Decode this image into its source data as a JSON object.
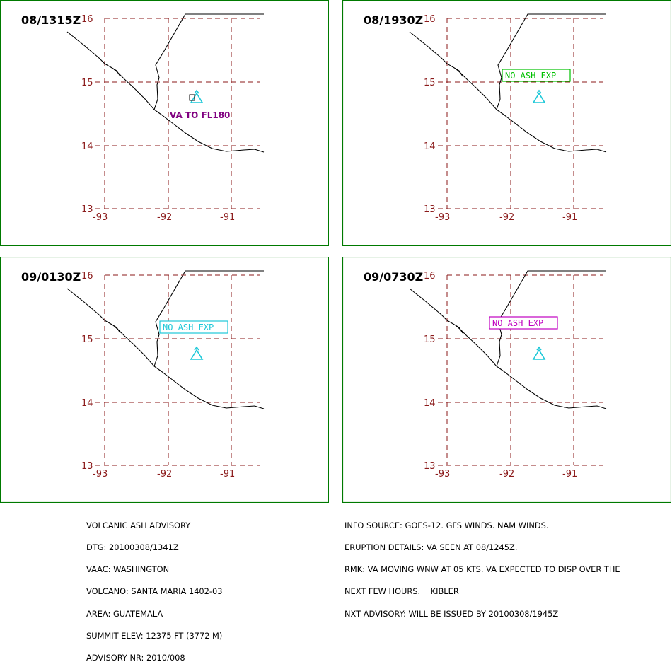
{
  "colors": {
    "frame": "#007a00",
    "grid": "#8b1a1a",
    "volcano": "#1ec8d8",
    "va_text": "#800080",
    "box_green": "#00c000",
    "box_cyan": "#1ec8d8",
    "box_magenta": "#c000c0"
  },
  "axes": {
    "lat_ticks": [
      "16",
      "15",
      "14",
      "13"
    ],
    "lon_ticks": [
      "-93",
      "-92",
      "-91"
    ]
  },
  "panels": [
    {
      "time": "08/1315Z",
      "label": "VA TO FL180",
      "label_type": "text"
    },
    {
      "time": "08/1930Z",
      "label": "NO ASH EXP",
      "label_type": "box"
    },
    {
      "time": "09/0130Z",
      "label": "NO ASH EXP",
      "label_type": "box"
    },
    {
      "time": "09/0730Z",
      "label": "NO ASH EXP",
      "label_type": "box"
    }
  ],
  "advisory_left": [
    "VOLCANIC ASH ADVISORY",
    "DTG: 20100308/1341Z",
    "VAAC: WASHINGTON",
    "VOLCANO: SANTA MARIA 1402-03",
    "AREA: GUATEMALA",
    "SUMMIT ELEV: 12375 FT (3772 M)",
    "ADVISORY NR: 2010/008"
  ],
  "advisory_right": [
    "INFO SOURCE: GOES-12. GFS WINDS. NAM WINDS.",
    "ERUPTION DETAILS: VA SEEN AT 08/1245Z.",
    "RMK: VA MOVING WNW AT 05 KTS. VA EXPECTED TO DISP OVER THE",
    "NEXT FEW HOURS.    KIBLER",
    "NXT ADVISORY: WILL BE ISSUED BY 20100308/1945Z"
  ]
}
